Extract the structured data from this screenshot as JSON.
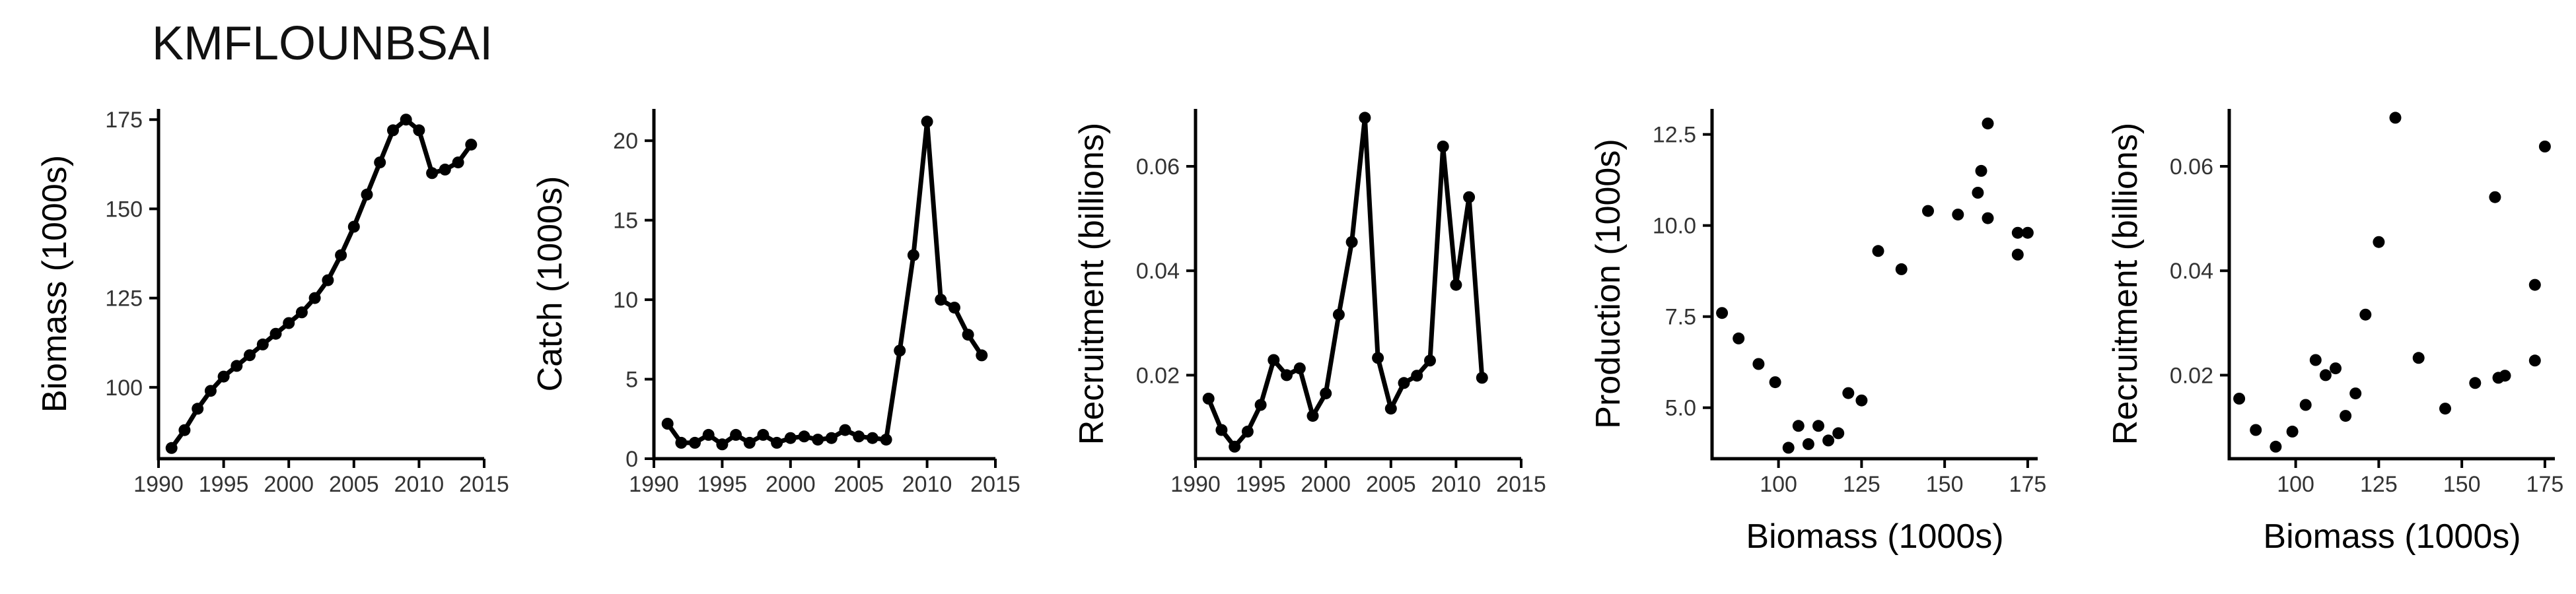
{
  "title": "KMFLOUNBSAI",
  "chart_data": [
    {
      "type": "line",
      "xlabel": "",
      "ylabel": "Biomass (1000s)",
      "xlim": [
        1990,
        2015
      ],
      "ylim": [
        80,
        178
      ],
      "xticks": [
        1990,
        1995,
        2000,
        2005,
        2010,
        2015
      ],
      "yticks": [
        100,
        125,
        150,
        175
      ],
      "points": [
        [
          1991,
          83
        ],
        [
          1992,
          88
        ],
        [
          1993,
          94
        ],
        [
          1994,
          99
        ],
        [
          1995,
          103
        ],
        [
          1996,
          106
        ],
        [
          1997,
          109
        ],
        [
          1998,
          112
        ],
        [
          1999,
          115
        ],
        [
          2000,
          118
        ],
        [
          2001,
          121
        ],
        [
          2002,
          125
        ],
        [
          2003,
          130
        ],
        [
          2004,
          137
        ],
        [
          2005,
          145
        ],
        [
          2006,
          154
        ],
        [
          2007,
          163
        ],
        [
          2008,
          172
        ],
        [
          2009,
          175
        ],
        [
          2010,
          172
        ],
        [
          2011,
          160
        ],
        [
          2012,
          161
        ],
        [
          2013,
          163
        ],
        [
          2014,
          168
        ]
      ]
    },
    {
      "type": "line",
      "xlabel": "",
      "ylabel": "Catch (1000s)",
      "xlim": [
        1990,
        2015
      ],
      "ylim": [
        0,
        22
      ],
      "xticks": [
        1990,
        1995,
        2000,
        2005,
        2010,
        2015
      ],
      "yticks": [
        0,
        5,
        10,
        15,
        20
      ],
      "points": [
        [
          1991,
          2.2
        ],
        [
          1992,
          1.0
        ],
        [
          1993,
          1.0
        ],
        [
          1994,
          1.5
        ],
        [
          1995,
          0.9
        ],
        [
          1996,
          1.5
        ],
        [
          1997,
          1.0
        ],
        [
          1998,
          1.5
        ],
        [
          1999,
          1.0
        ],
        [
          2000,
          1.3
        ],
        [
          2001,
          1.4
        ],
        [
          2002,
          1.2
        ],
        [
          2003,
          1.3
        ],
        [
          2004,
          1.8
        ],
        [
          2005,
          1.4
        ],
        [
          2006,
          1.3
        ],
        [
          2007,
          1.2
        ],
        [
          2008,
          6.8
        ],
        [
          2009,
          12.8
        ],
        [
          2010,
          21.2
        ],
        [
          2011,
          10.0
        ],
        [
          2012,
          9.5
        ],
        [
          2013,
          7.8
        ],
        [
          2014,
          6.5
        ]
      ]
    },
    {
      "type": "line",
      "xlabel": "",
      "ylabel": "Recruitment (billions)",
      "xlim": [
        1990,
        2015
      ],
      "ylim": [
        0.004,
        0.071
      ],
      "xticks": [
        1990,
        1995,
        2000,
        2005,
        2010,
        2015
      ],
      "yticks": [
        0.02,
        0.04,
        0.06
      ],
      "points": [
        [
          1991,
          0.0155
        ],
        [
          1992,
          0.0095
        ],
        [
          1993,
          0.0063
        ],
        [
          1994,
          0.0092
        ],
        [
          1995,
          0.0143
        ],
        [
          1996,
          0.0229
        ],
        [
          1997,
          0.02
        ],
        [
          1998,
          0.0213
        ],
        [
          1999,
          0.0122
        ],
        [
          2000,
          0.0165
        ],
        [
          2001,
          0.0316
        ],
        [
          2002,
          0.0455
        ],
        [
          2003,
          0.0693
        ],
        [
          2004,
          0.0233
        ],
        [
          2005,
          0.0136
        ],
        [
          2006,
          0.0185
        ],
        [
          2007,
          0.0199
        ],
        [
          2008,
          0.0228
        ],
        [
          2009,
          0.0638
        ],
        [
          2010,
          0.0373
        ],
        [
          2011,
          0.0541
        ],
        [
          2012,
          0.0195
        ]
      ]
    },
    {
      "type": "scatter",
      "xlabel": "Biomass (1000s)",
      "ylabel": "Production (1000s)",
      "xlim": [
        80,
        178
      ],
      "ylim": [
        3.6,
        13.2
      ],
      "xticks": [
        100,
        125,
        150,
        175
      ],
      "yticks": [
        5.0,
        7.5,
        10.0,
        12.5
      ],
      "ytick_labels": [
        "5.0",
        "7.5",
        "10.0",
        "12.5"
      ],
      "points": [
        [
          83,
          7.6
        ],
        [
          88,
          6.9
        ],
        [
          94,
          6.2
        ],
        [
          99,
          5.7
        ],
        [
          103,
          3.9
        ],
        [
          106,
          4.5
        ],
        [
          109,
          4.0
        ],
        [
          112,
          4.5
        ],
        [
          115,
          4.1
        ],
        [
          118,
          4.3
        ],
        [
          121,
          5.4
        ],
        [
          125,
          5.2
        ],
        [
          130,
          9.3
        ],
        [
          137,
          8.8
        ],
        [
          145,
          10.4
        ],
        [
          154,
          10.3
        ],
        [
          160,
          10.9
        ],
        [
          161,
          11.5
        ],
        [
          163,
          12.8
        ],
        [
          163,
          10.2
        ],
        [
          172,
          9.2
        ],
        [
          172,
          9.8
        ],
        [
          175,
          9.8
        ]
      ]
    },
    {
      "type": "scatter",
      "xlabel": "Biomass (1000s)",
      "ylabel": "Recruitment (billions)",
      "xlim": [
        80,
        178
      ],
      "ylim": [
        0.004,
        0.071
      ],
      "xticks": [
        100,
        125,
        150,
        175
      ],
      "yticks": [
        0.02,
        0.04,
        0.06
      ],
      "points": [
        [
          83,
          0.0155
        ],
        [
          88,
          0.0095
        ],
        [
          94,
          0.0063
        ],
        [
          99,
          0.0092
        ],
        [
          103,
          0.0143
        ],
        [
          106,
          0.0229
        ],
        [
          109,
          0.02
        ],
        [
          112,
          0.0213
        ],
        [
          115,
          0.0122
        ],
        [
          118,
          0.0165
        ],
        [
          121,
          0.0316
        ],
        [
          125,
          0.0455
        ],
        [
          130,
          0.0693
        ],
        [
          137,
          0.0233
        ],
        [
          145,
          0.0136
        ],
        [
          154,
          0.0185
        ],
        [
          160,
          0.0541
        ],
        [
          161,
          0.0195
        ],
        [
          163,
          0.0199
        ],
        [
          172,
          0.0373
        ],
        [
          172,
          0.0228
        ],
        [
          175,
          0.0638
        ]
      ]
    }
  ]
}
